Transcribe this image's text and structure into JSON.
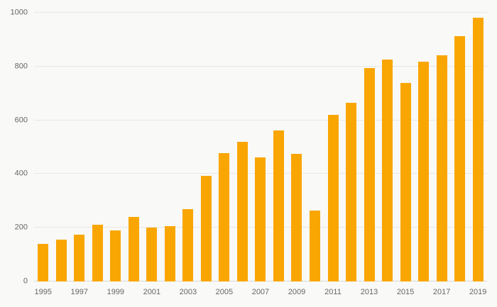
{
  "chart_data": {
    "type": "bar",
    "categories": [
      "1995",
      "1996",
      "1997",
      "1998",
      "1999",
      "2000",
      "2001",
      "2002",
      "2003",
      "2004",
      "2005",
      "2006",
      "2007",
      "2008",
      "2009",
      "2010",
      "2011",
      "2012",
      "2013",
      "2014",
      "2015",
      "2016",
      "2017",
      "2018",
      "2019"
    ],
    "values": [
      140,
      155,
      175,
      210,
      190,
      240,
      200,
      205,
      270,
      393,
      478,
      520,
      463,
      562,
      474,
      264,
      620,
      665,
      793,
      827,
      740,
      817,
      843,
      912,
      982
    ],
    "title": "",
    "xlabel": "",
    "ylabel": "",
    "ylim": [
      0,
      1000
    ],
    "ytick_step": 200,
    "ytick_labels": [
      "0",
      "200",
      "400",
      "600",
      "800",
      "1000"
    ],
    "x_label_every": 2,
    "x_label_start_index": 0,
    "grid": true,
    "legend": "none",
    "colors": {
      "bar": "#F9A602",
      "background": "#f9f9f7",
      "gridline": "#e7e7e4",
      "tick_text": "#666666"
    }
  }
}
